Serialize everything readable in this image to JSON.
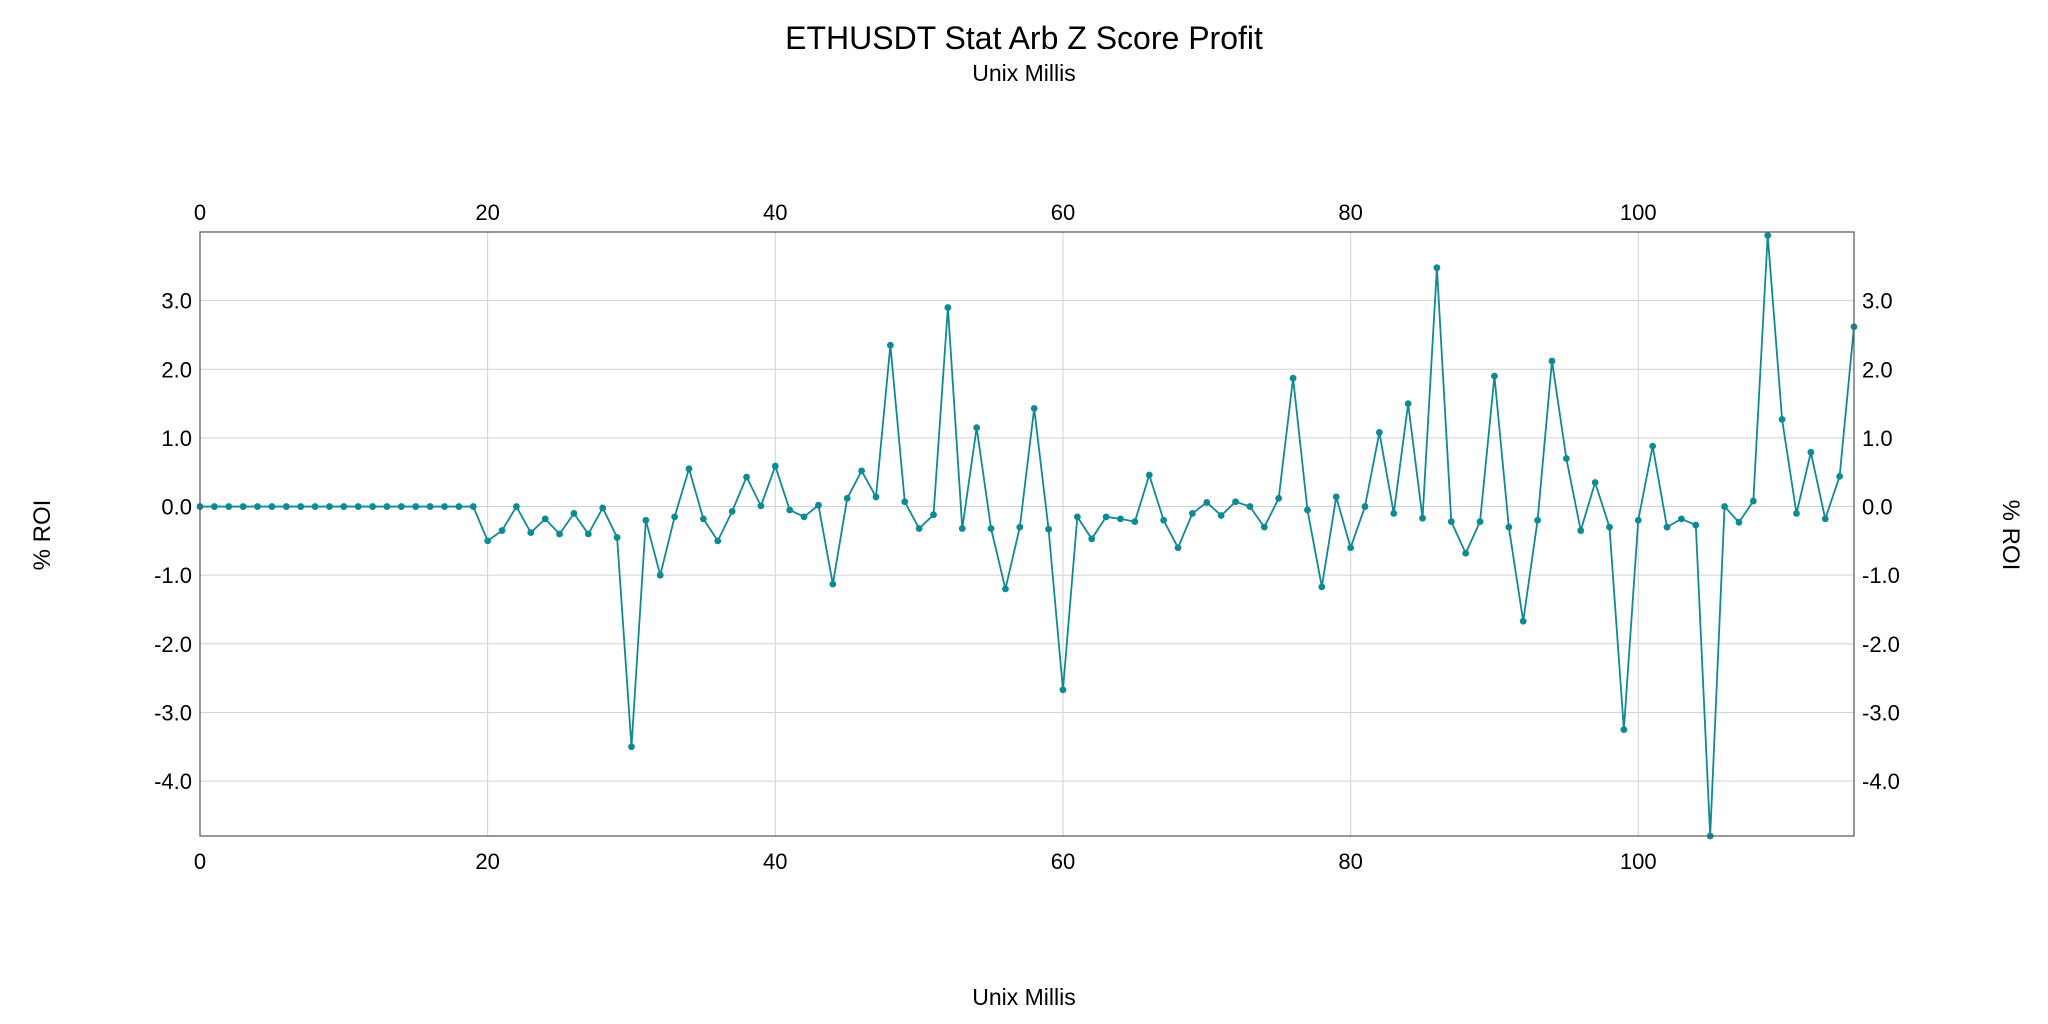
{
  "chart_data": {
    "type": "line",
    "title": "ETHUSDT Stat Arb Z Score Profit",
    "subtitle": "Unix Millis",
    "xlabel": "Unix Millis",
    "ylabel": "% ROI",
    "xlim": [
      0,
      115
    ],
    "ylim": [
      -4.8,
      4.0
    ],
    "x_ticks": [
      0,
      20,
      40,
      60,
      80,
      100
    ],
    "y_ticks": [
      3.0,
      2.0,
      1.0,
      0.0,
      -1.0,
      -2.0,
      -3.0,
      -4.0
    ],
    "x_tick_labels": [
      "0",
      "20",
      "40",
      "60",
      "80",
      "100"
    ],
    "y_tick_labels": [
      "3.0",
      "2.0",
      "1.0",
      "0.0",
      "-1.0",
      "-2.0",
      "-3.0",
      "-4.0"
    ],
    "grid": true,
    "line_color": "#0e8a93",
    "series": [
      {
        "values": [
          0,
          0,
          0,
          0,
          0,
          0,
          0,
          0,
          0,
          0,
          0,
          0,
          0,
          0,
          0,
          0,
          0,
          0,
          0,
          0,
          -0.5,
          -0.35,
          0.0,
          -0.38,
          -0.18,
          -0.4,
          -0.1,
          -0.4,
          -0.02,
          -0.45,
          -3.5,
          -0.2,
          -1.0,
          -0.15,
          0.55,
          -0.18,
          -0.5,
          -0.07,
          0.43,
          0.01,
          0.59,
          -0.05,
          -0.15,
          0.02,
          -1.13,
          0.12,
          0.52,
          0.14,
          2.35,
          0.07,
          -0.32,
          -0.12,
          2.9,
          -0.32,
          1.15,
          -0.32,
          -1.2,
          -0.3,
          1.43,
          -0.33,
          -2.67,
          -0.15,
          -0.47,
          -0.15,
          -0.18,
          -0.22,
          0.46,
          -0.2,
          -0.6,
          -0.1,
          0.06,
          -0.13,
          0.07,
          0.0,
          -0.3,
          0.12,
          1.87,
          -0.05,
          -1.17,
          0.14,
          -0.6,
          0.0,
          1.08,
          -0.1,
          1.5,
          -0.17,
          3.48,
          -0.22,
          -0.68,
          -0.22,
          1.9,
          -0.3,
          -1.67,
          -0.2,
          2.12,
          0.7,
          -0.35,
          0.35,
          -0.3,
          -3.25,
          -0.2,
          0.88,
          -0.3,
          -0.18,
          -0.27,
          -4.8,
          0.0,
          -0.23,
          0.08,
          3.95,
          1.27,
          -0.1,
          0.79,
          -0.18,
          0.44,
          2.62
        ]
      }
    ]
  }
}
